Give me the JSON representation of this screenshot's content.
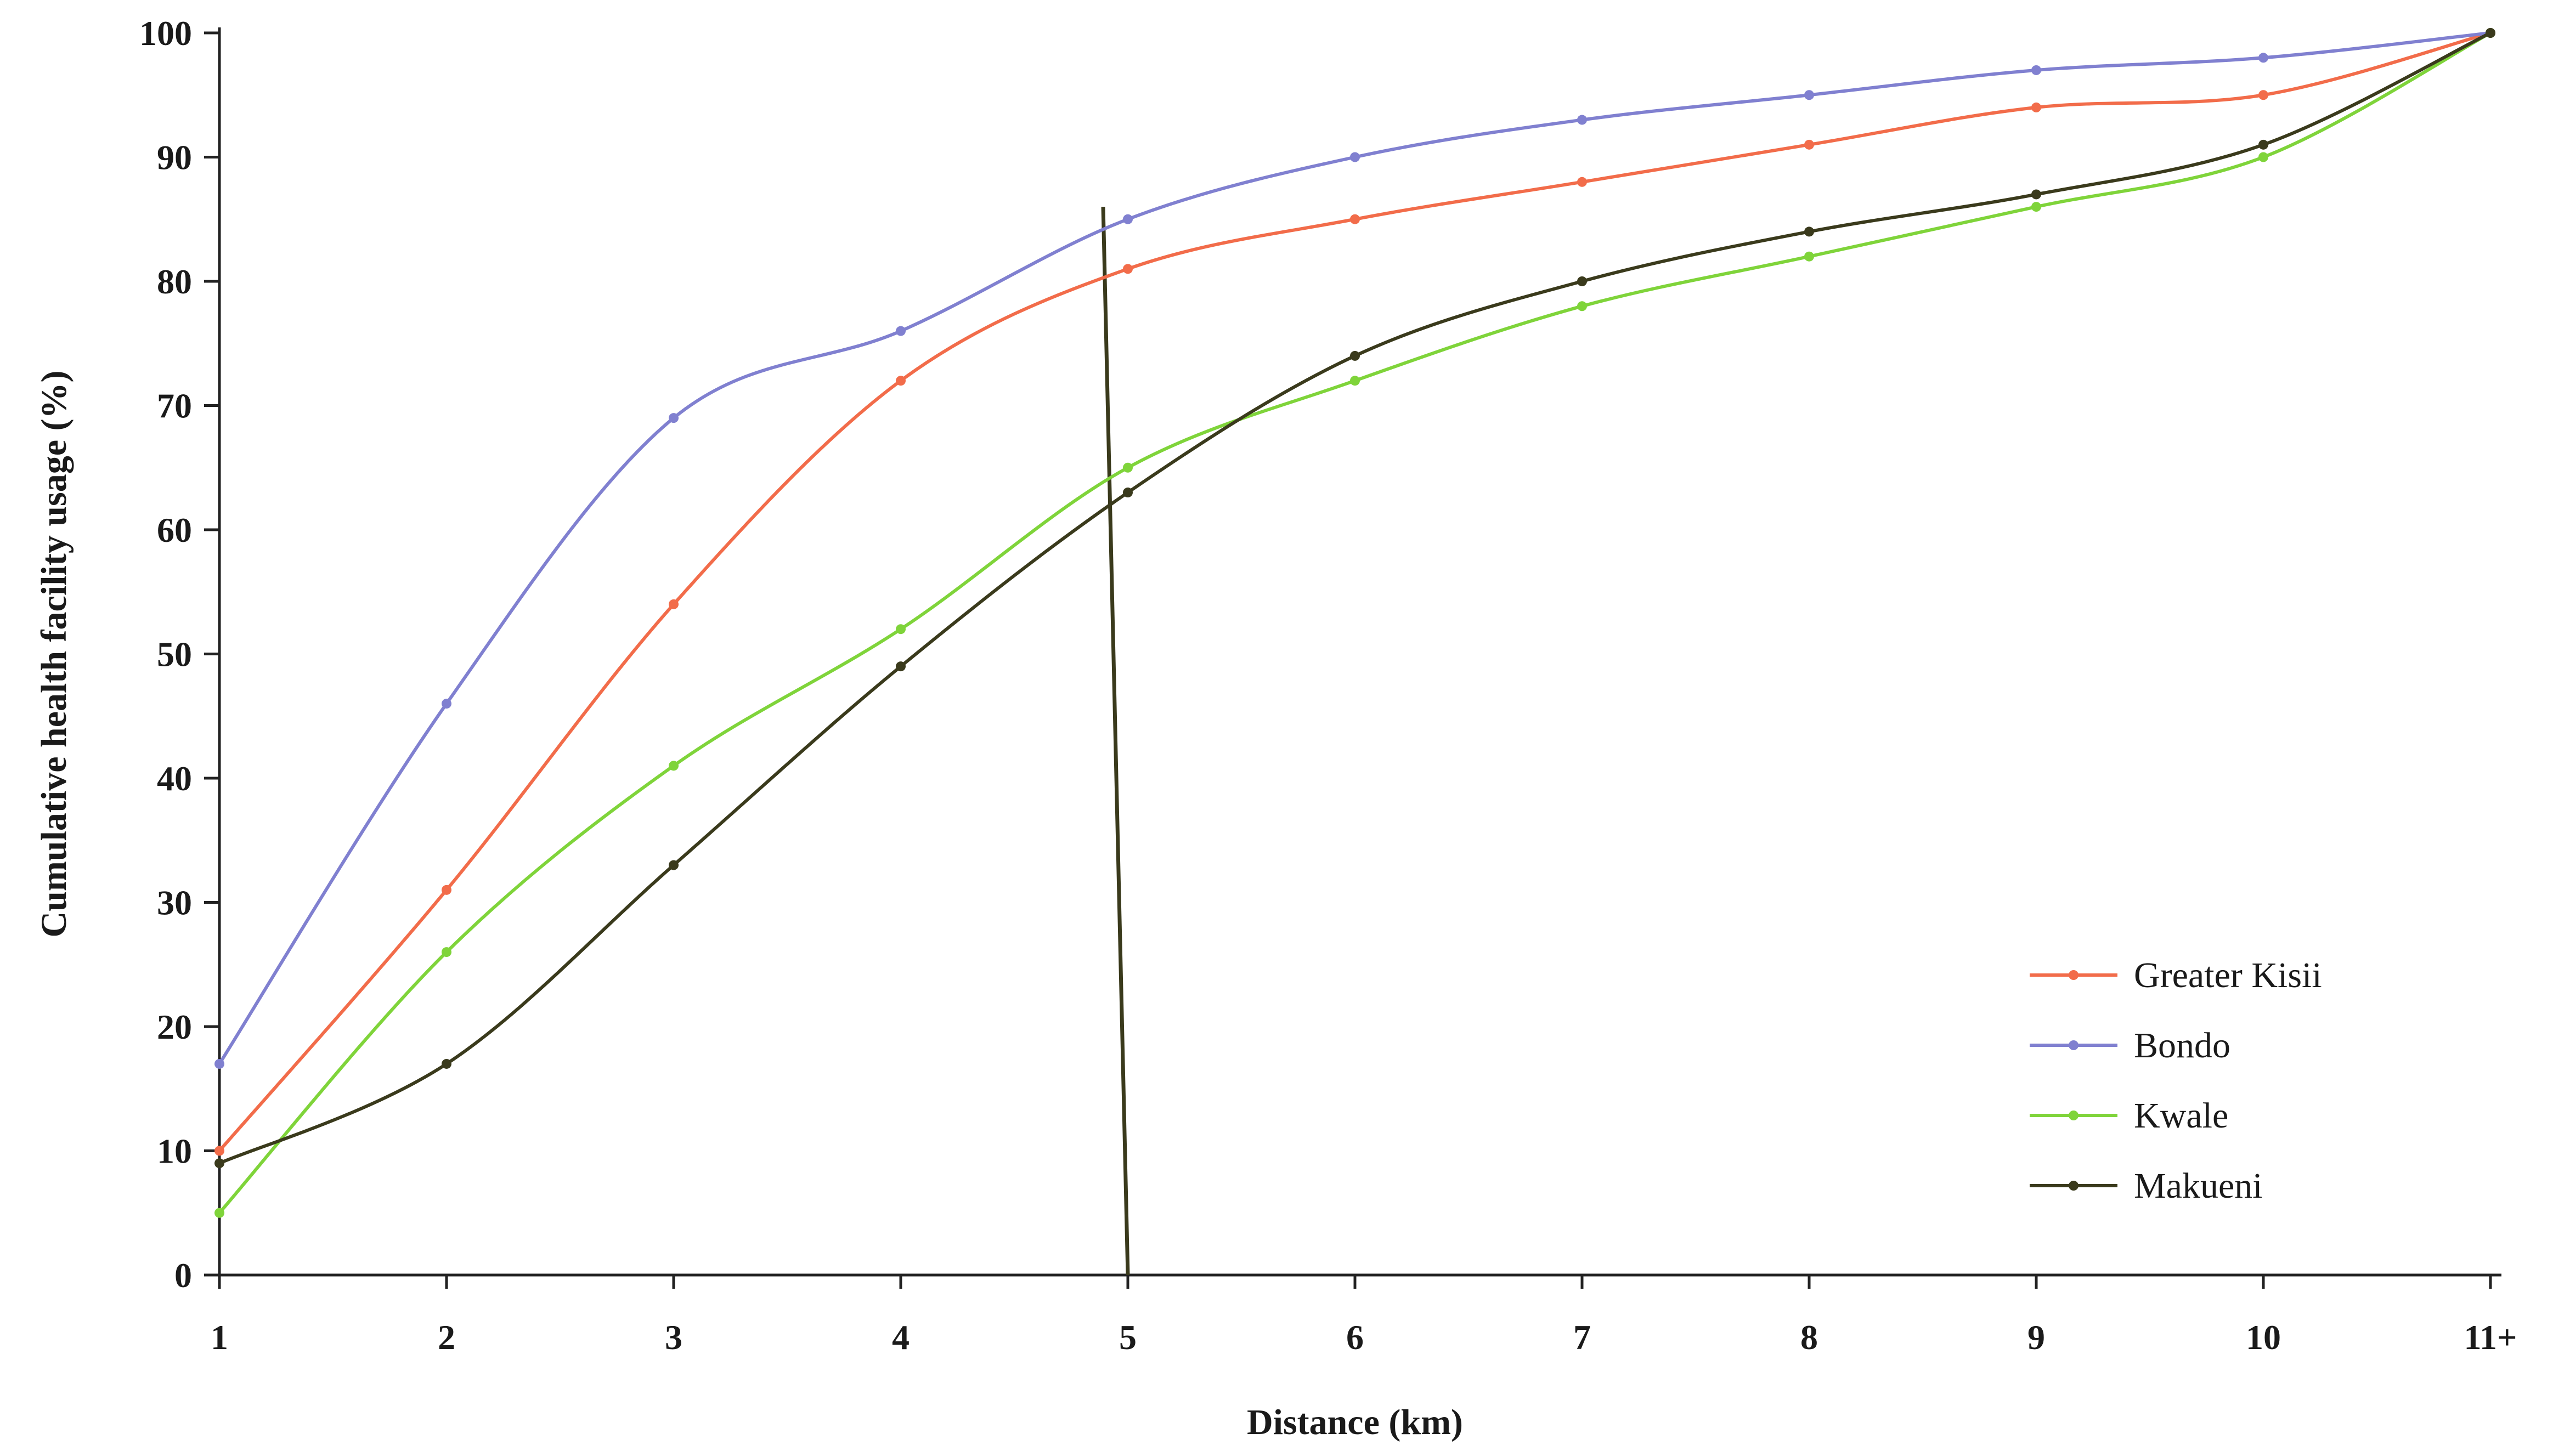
{
  "chart_data": {
    "type": "line",
    "xlabel": "Distance (km)",
    "ylabel": "Cumulative health facility usage (%)",
    "x": [
      1,
      2,
      3,
      4,
      5,
      6,
      7,
      8,
      9,
      10,
      11
    ],
    "x_tick_labels": [
      "1",
      "2",
      "3",
      "4",
      "5",
      "6",
      "7",
      "8",
      "9",
      "10",
      "11+"
    ],
    "ylim": [
      0,
      100
    ],
    "y_ticks": [
      0,
      10,
      20,
      30,
      40,
      50,
      60,
      70,
      80,
      90,
      100
    ],
    "grid": false,
    "legend_position": "right",
    "reference_line_x": 5,
    "series": [
      {
        "name": "Greater Kisii",
        "color": "#f26c4a",
        "values": [
          10,
          31,
          54,
          72,
          81,
          85,
          88,
          91,
          94,
          95,
          100
        ]
      },
      {
        "name": "Bondo",
        "color": "#8080d0",
        "values": [
          17,
          46,
          69,
          76,
          85,
          90,
          93,
          95,
          97,
          98,
          100
        ]
      },
      {
        "name": "Kwale",
        "color": "#7fd43a",
        "values": [
          5,
          26,
          41,
          52,
          65,
          72,
          78,
          82,
          86,
          90,
          100
        ]
      },
      {
        "name": "Makueni",
        "color": "#3a3a1c",
        "values": [
          9,
          17,
          33,
          49,
          63,
          74,
          80,
          84,
          87,
          91,
          100
        ]
      }
    ]
  }
}
